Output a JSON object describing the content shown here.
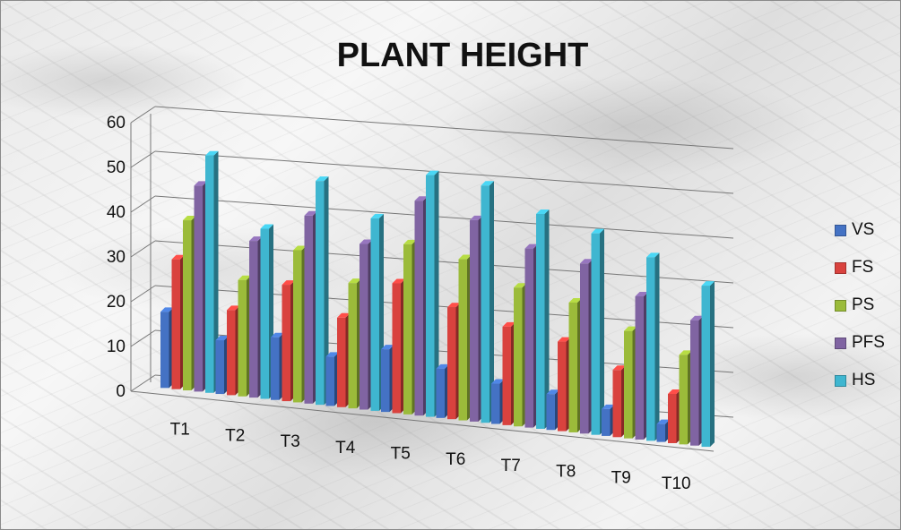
{
  "chart_data": {
    "type": "bar",
    "style": "3d-clustered-column",
    "title": "PLANT HEIGHT",
    "xlabel": "",
    "ylabel": "",
    "ylim": [
      0,
      60
    ],
    "yticks": [
      0,
      10,
      20,
      30,
      40,
      50,
      60
    ],
    "grid": true,
    "legend_position": "right",
    "categories": [
      "T1",
      "T2",
      "T3",
      "T4",
      "T5",
      "T6",
      "T7",
      "T8",
      "T9",
      "T10"
    ],
    "series": [
      {
        "name": "VS",
        "color": "#4472C4",
        "values": [
          17,
          12,
          14,
          11,
          14,
          11,
          9,
          8,
          6,
          4
        ]
      },
      {
        "name": "FS",
        "color": "#D9423E",
        "values": [
          29,
          19,
          26,
          20,
          29,
          25,
          22,
          20,
          15,
          11
        ]
      },
      {
        "name": "PS",
        "color": "#9BBB3A",
        "values": [
          38,
          26,
          34,
          28,
          38,
          36,
          31,
          29,
          24,
          20
        ]
      },
      {
        "name": "PFS",
        "color": "#8064A2",
        "values": [
          46,
          35,
          42,
          37,
          48,
          45,
          40,
          38,
          32,
          28
        ]
      },
      {
        "name": "HS",
        "color": "#3FB6D0",
        "values": [
          53,
          38,
          50,
          43,
          54,
          53,
          48,
          45,
          41,
          36
        ]
      }
    ]
  }
}
